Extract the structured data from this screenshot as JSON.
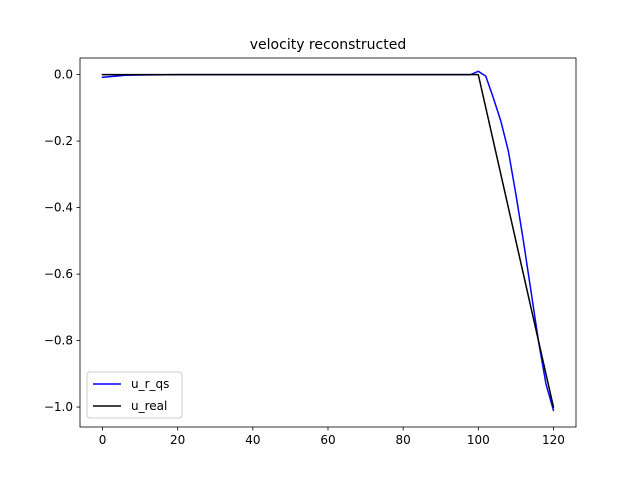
{
  "chart_data": {
    "type": "line",
    "title": "velocity reconstructed",
    "xlabel": "",
    "ylabel": "",
    "xlim": [
      -6,
      126
    ],
    "ylim": [
      -1.06,
      0.05
    ],
    "xticks": [
      0,
      20,
      40,
      60,
      80,
      100,
      120
    ],
    "xtick_labels": [
      "0",
      "20",
      "40",
      "60",
      "80",
      "100",
      "120"
    ],
    "yticks": [
      0.0,
      -0.2,
      -0.4,
      -0.6,
      -0.8,
      -1.0
    ],
    "ytick_labels": [
      "0.0",
      "−0.2",
      "−0.4",
      "−0.6",
      "−0.8",
      "−1.0"
    ],
    "grid": false,
    "legend_position": "lower-left",
    "series": [
      {
        "name": "u_r_qs",
        "color": "#0000ff",
        "x": [
          0,
          2,
          4,
          6,
          10,
          20,
          40,
          60,
          80,
          98,
          100,
          102,
          104,
          106,
          108,
          110,
          112,
          114,
          116,
          118,
          120
        ],
        "y": [
          -0.008,
          -0.006,
          -0.004,
          -0.002,
          -0.001,
          0.0,
          0.0,
          0.0,
          0.0,
          0.0,
          0.01,
          -0.005,
          -0.07,
          -0.14,
          -0.23,
          -0.36,
          -0.5,
          -0.65,
          -0.8,
          -0.93,
          -1.01
        ]
      },
      {
        "name": "u_real",
        "color": "#000000",
        "x": [
          0,
          20,
          40,
          60,
          80,
          100,
          120
        ],
        "y": [
          0.0,
          0.0,
          0.0,
          0.0,
          0.0,
          0.0,
          -1.0
        ]
      }
    ]
  }
}
